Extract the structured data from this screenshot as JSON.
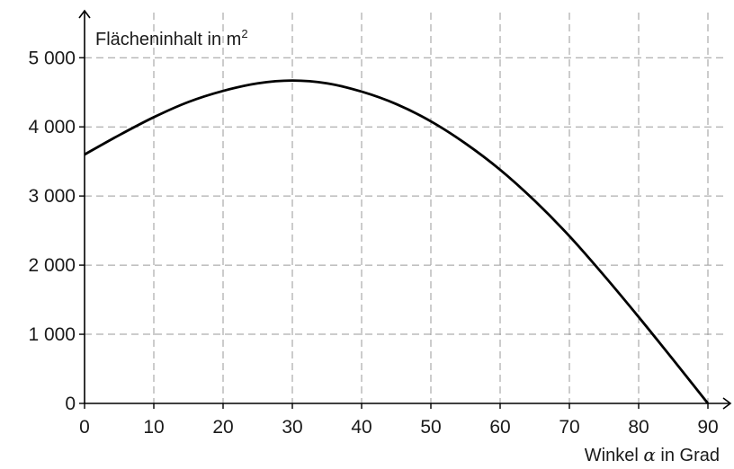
{
  "chart_data": {
    "type": "line",
    "xlabel_prefix": "Winkel ",
    "xlabel_symbol": "α",
    "xlabel_suffix": " in Grad",
    "ylabel_main": "Flächeninhalt in m",
    "ylabel_sup": "2",
    "xlim": [
      0,
      95
    ],
    "ylim": [
      0,
      5400
    ],
    "x_ticks": [
      0,
      10,
      20,
      30,
      40,
      50,
      60,
      70,
      80,
      90
    ],
    "x_tick_labels": [
      "0",
      "10",
      "20",
      "30",
      "40",
      "50",
      "60",
      "70",
      "80",
      "90"
    ],
    "y_ticks": [
      0,
      1000,
      2000,
      3000,
      4000,
      5000
    ],
    "y_tick_labels": [
      "0",
      "1 000",
      "2 000",
      "3 000",
      "4 000",
      "5 000"
    ],
    "grid": true,
    "series": [
      {
        "x": [
          0,
          5,
          10,
          15,
          20,
          25,
          30,
          35,
          40,
          45,
          50,
          55,
          60,
          65,
          70,
          75,
          80,
          85,
          90
        ],
        "y": [
          3600,
          3880,
          4140,
          4360,
          4520,
          4630,
          4670,
          4630,
          4510,
          4330,
          4080,
          3760,
          3380,
          2930,
          2420,
          1850,
          1250,
          630,
          0
        ]
      }
    ]
  }
}
